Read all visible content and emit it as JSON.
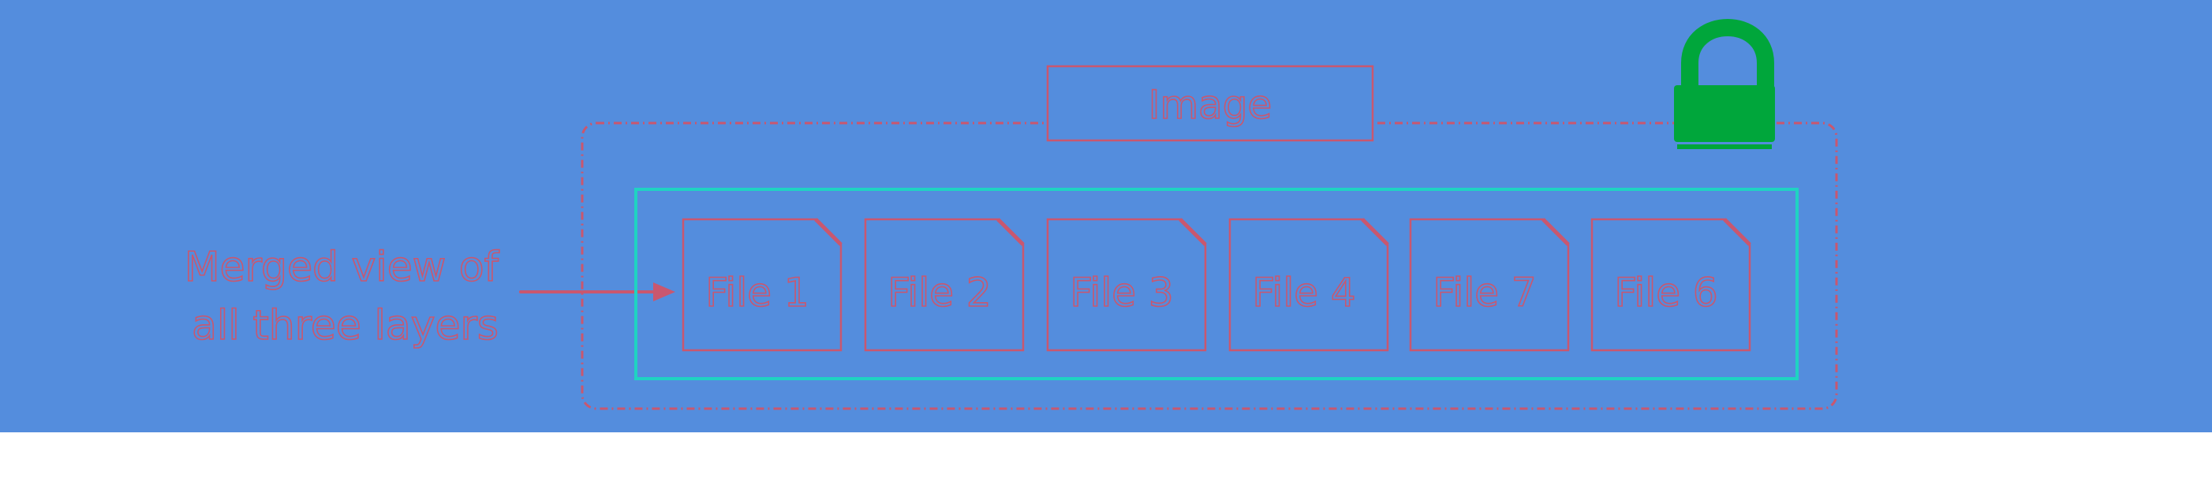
{
  "diagram": {
    "caption_line1": "Merged view of",
    "caption_line2": "all three layers",
    "image_label": "Image",
    "files": [
      "File 1",
      "File 2",
      "File 3",
      "File 4",
      "File 7",
      "File 6"
    ],
    "icons": {
      "lock": "lock-icon",
      "arrow": "arrow-right-icon"
    },
    "colors": {
      "background": "#548ddd",
      "outline": "#c9576f",
      "inner_box": "#1fd3c2",
      "lock": "#00a63b"
    }
  }
}
